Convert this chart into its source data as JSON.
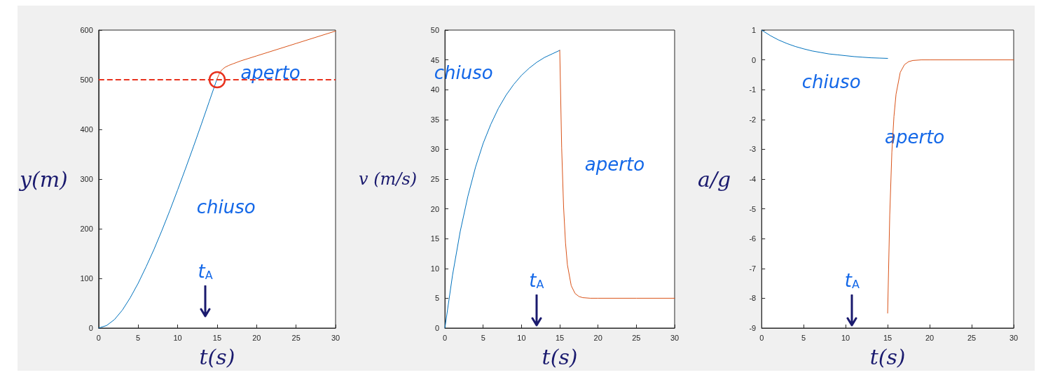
{
  "chart_data": [
    {
      "type": "line",
      "xlabel": "t(s)",
      "ylabel": "y(m)",
      "xlim": [
        0,
        30
      ],
      "xticks": [
        0,
        5,
        10,
        15,
        20,
        25,
        30
      ],
      "ylim": [
        0,
        600
      ],
      "yticks": [
        0,
        100,
        200,
        300,
        400,
        500,
        600
      ],
      "grid": false,
      "marker": "none",
      "line_style": "solid",
      "series": [
        {
          "color": "#0072bd",
          "x": [
            0,
            1,
            2,
            3,
            4,
            5,
            6,
            7,
            8,
            9,
            10,
            11,
            12,
            13,
            14,
            15
          ],
          "values": [
            0,
            5,
            17,
            36,
            61,
            90,
            123,
            158,
            196,
            236,
            278,
            321,
            365,
            410,
            456,
            502
          ]
        },
        {
          "color": "#d95319",
          "x": [
            15,
            15.25,
            15.5,
            15.75,
            16,
            16.5,
            17,
            17.5,
            18,
            19,
            20,
            25,
            30
          ],
          "values": [
            502,
            511,
            518,
            522,
            525,
            529,
            532,
            535,
            538,
            543,
            548,
            573,
            598
          ]
        }
      ],
      "ref_lines": [
        {
          "axis": "y",
          "value": 500,
          "color": "#e8321e",
          "line_style": "dashed"
        }
      ],
      "annotations": [
        "chiuso",
        "aperto",
        "t$_{A}$"
      ]
    },
    {
      "type": "line",
      "xlabel": "t(s)",
      "ylabel": "v (m/s)",
      "xlim": [
        0,
        30
      ],
      "xticks": [
        0,
        5,
        10,
        15,
        20,
        25,
        30
      ],
      "ylim": [
        0,
        50
      ],
      "yticks": [
        0,
        5,
        10,
        15,
        20,
        25,
        30,
        35,
        40,
        45,
        50
      ],
      "grid": false,
      "marker": "none",
      "line_style": "solid",
      "series": [
        {
          "color": "#0072bd",
          "x": [
            0,
            1,
            2,
            3,
            4,
            5,
            6,
            7,
            8,
            9,
            10,
            11,
            12,
            13,
            14,
            15
          ],
          "values": [
            0,
            8.9,
            16.2,
            22.1,
            27,
            31,
            34.2,
            36.9,
            39.1,
            40.9,
            42.4,
            43.6,
            44.6,
            45.4,
            46,
            46.6
          ]
        },
        {
          "color": "#d95319",
          "x": [
            15,
            15.25,
            15.5,
            15.75,
            16,
            16.5,
            17,
            17.5,
            18,
            19,
            20,
            25,
            30
          ],
          "values": [
            46.6,
            30.2,
            20.3,
            14.3,
            10.6,
            7.1,
            5.8,
            5.3,
            5.1,
            5,
            5,
            5,
            5
          ]
        }
      ],
      "annotations": [
        "chiuso",
        "aperto",
        "t$_{A}$"
      ]
    },
    {
      "type": "line",
      "xlabel": "t(s)",
      "ylabel": "a/g",
      "xlim": [
        0,
        30
      ],
      "xticks": [
        0,
        5,
        10,
        15,
        20,
        25,
        30
      ],
      "ylim": [
        -9,
        1
      ],
      "yticks": [
        -9,
        -8,
        -7,
        -6,
        -5,
        -4,
        -3,
        -2,
        -1,
        0,
        1
      ],
      "grid": false,
      "marker": "none",
      "line_style": "solid",
      "series": [
        {
          "color": "#0072bd",
          "x": [
            0,
            1,
            2,
            3,
            4,
            5,
            6,
            7,
            8,
            9,
            10,
            11,
            12,
            13,
            14,
            15
          ],
          "values": [
            1,
            0.82,
            0.67,
            0.55,
            0.45,
            0.37,
            0.3,
            0.25,
            0.2,
            0.17,
            0.14,
            0.11,
            0.09,
            0.07,
            0.06,
            0.05
          ]
        },
        {
          "color": "#d95319",
          "x": [
            15,
            15.25,
            15.5,
            15.75,
            16,
            16.5,
            17,
            17.5,
            18,
            19,
            20,
            25,
            30
          ],
          "values": [
            -8.5,
            -5.2,
            -3.1,
            -1.9,
            -1.15,
            -0.42,
            -0.16,
            -0.06,
            -0.02,
            0,
            0,
            0,
            0
          ]
        }
      ],
      "annotations": [
        "chiuso",
        "aperto",
        "t$_{A}$"
      ]
    }
  ]
}
